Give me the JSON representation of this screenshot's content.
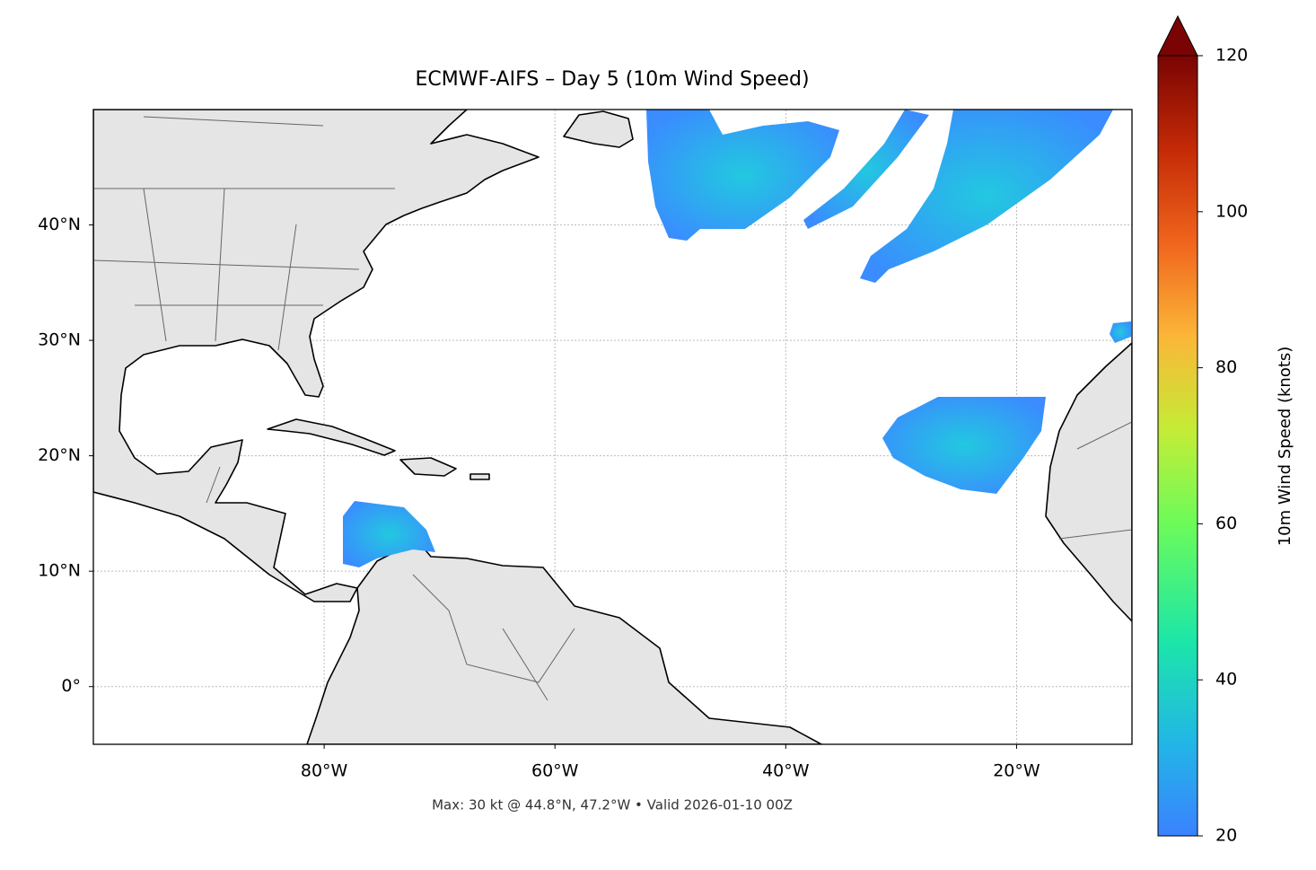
{
  "chart_data": {
    "type": "map",
    "title": "ECMWF-AIFS – Day 5 (10m Wind Speed)",
    "footer": "Max: 30 kt @ 44.8°N, 47.2°W • Valid 2026-01-10 00Z",
    "xlim": [
      -100,
      -10
    ],
    "ylim": [
      -5,
      50
    ],
    "xticks": [
      {
        "value": -80,
        "label": "80°W"
      },
      {
        "value": -60,
        "label": "60°W"
      },
      {
        "value": -40,
        "label": "40°W"
      },
      {
        "value": -20,
        "label": "20°W"
      }
    ],
    "yticks": [
      {
        "value": 0,
        "label": "0°"
      },
      {
        "value": 10,
        "label": "10°N"
      },
      {
        "value": 20,
        "label": "20°N"
      },
      {
        "value": 30,
        "label": "30°N"
      },
      {
        "value": 40,
        "label": "40°N"
      }
    ],
    "grid": true,
    "colorbar": {
      "label": "10m Wind Speed (knots)",
      "lim": [
        20,
        120
      ],
      "ticks": [
        20,
        40,
        60,
        80,
        100,
        120
      ],
      "extend": "max"
    }
  }
}
